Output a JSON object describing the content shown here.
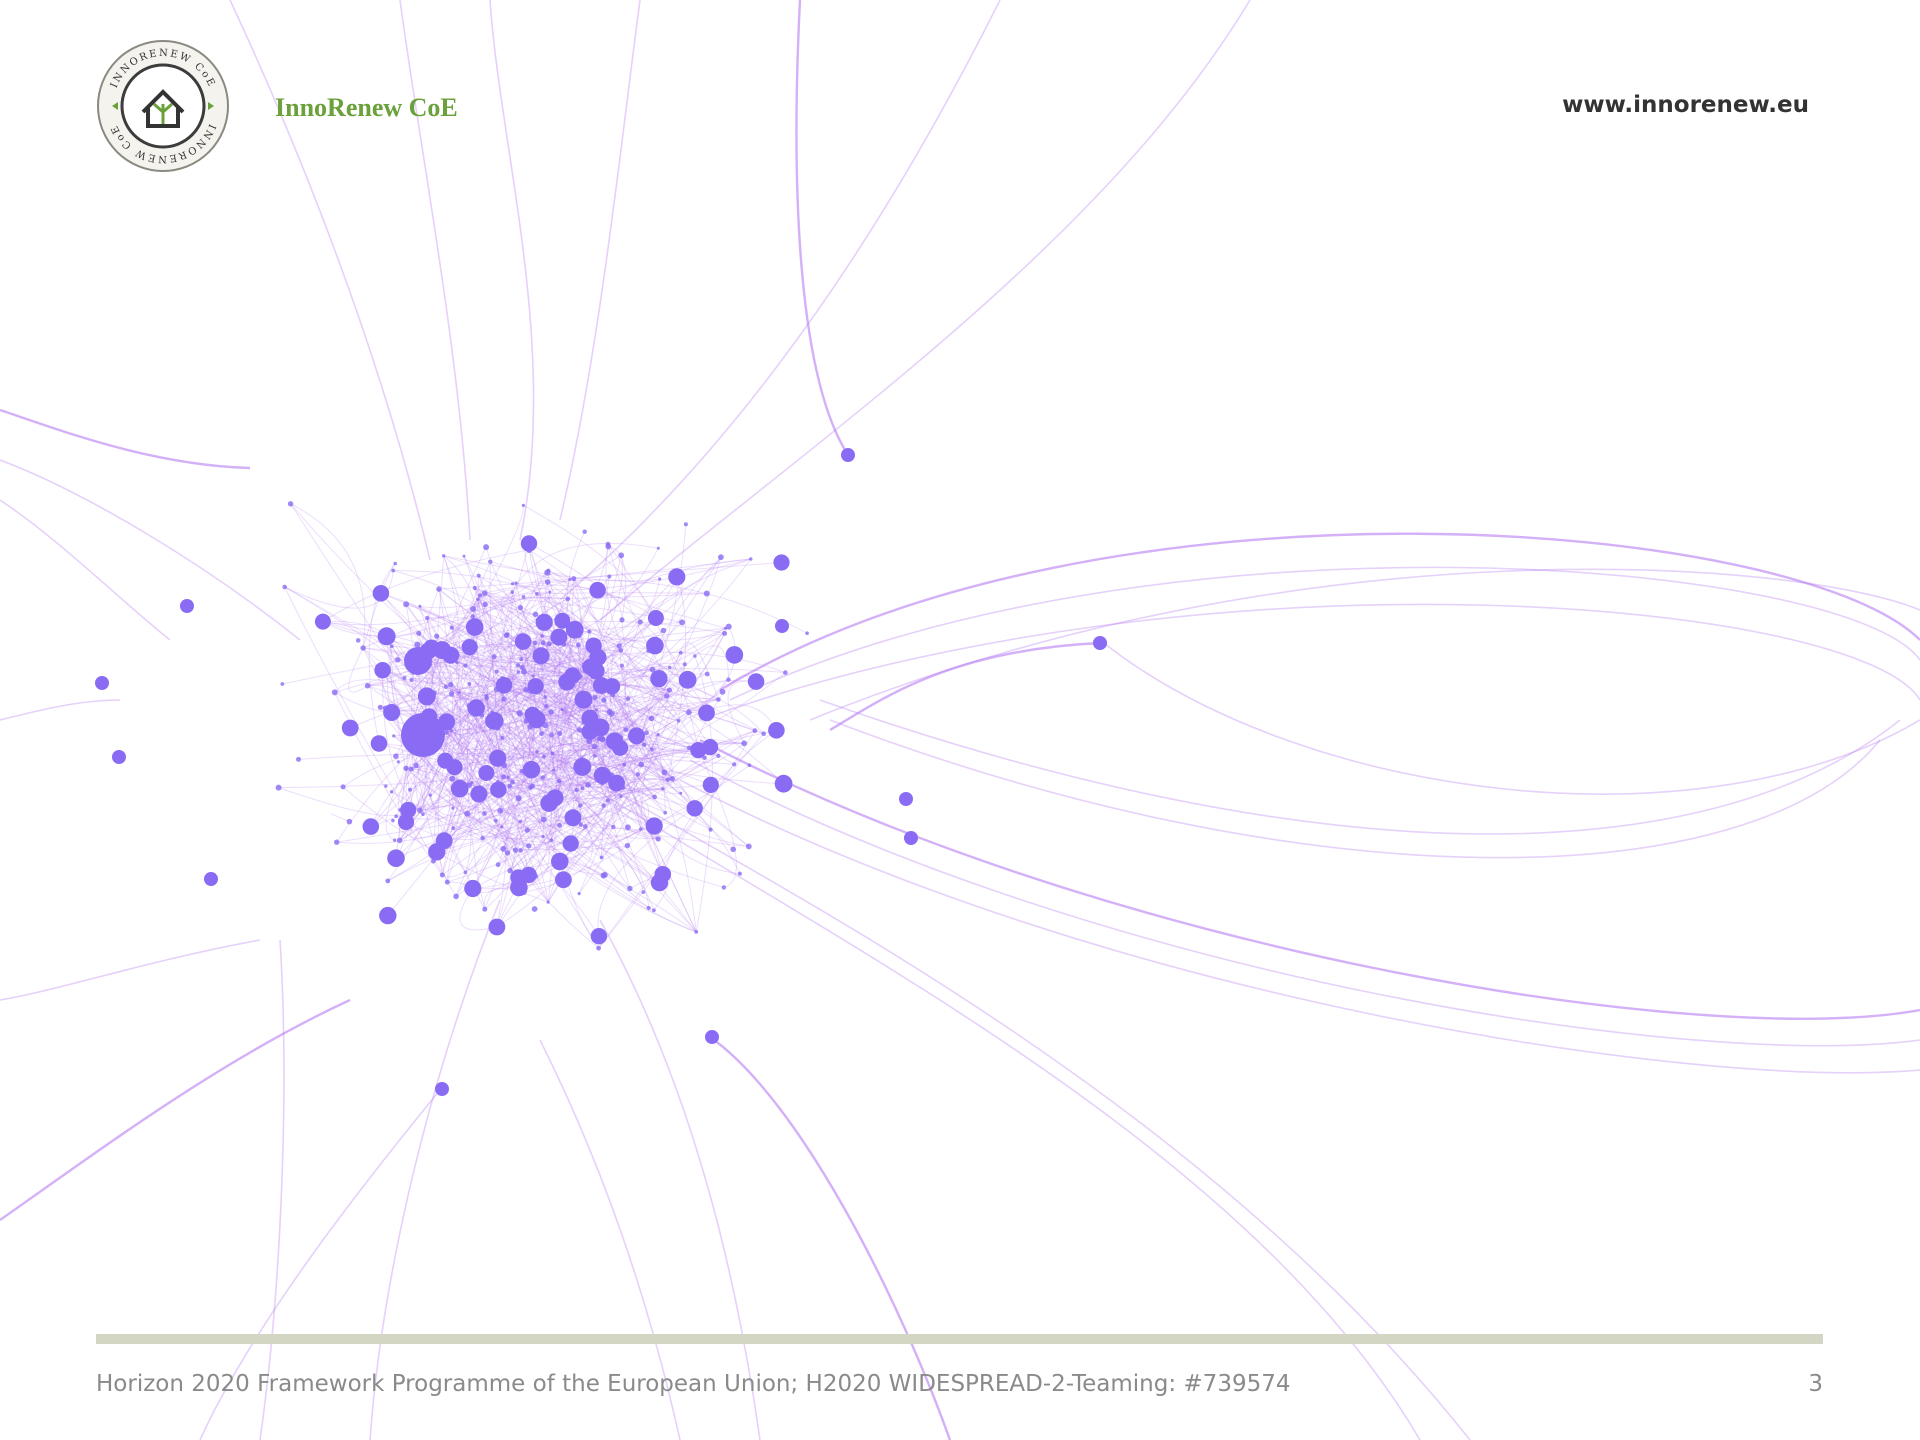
{
  "header": {
    "logo_ring_text": "INNORENEW CoE",
    "brand": "InnoRenew CoE",
    "url": "www.innorenew.eu"
  },
  "footer": {
    "text": "Horizon 2020 Framework Programme of the European Union; H2020 WIDESPREAD-2-Teaming: #739574",
    "page_number": "3"
  }
}
